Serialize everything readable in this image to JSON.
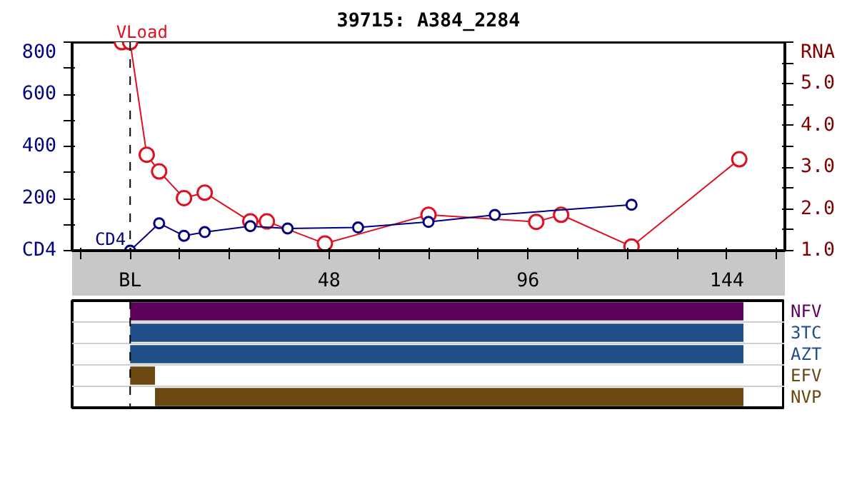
{
  "chart_data": [
    {
      "type": "line",
      "title": "39715: A384_2284",
      "marker": "circle",
      "grid": false,
      "xlim": [
        -14,
        158
      ],
      "xticks": [
        {
          "value": -12,
          "label": null
        },
        {
          "value": 0,
          "label": "BL"
        },
        {
          "value": 12,
          "label": null
        },
        {
          "value": 24,
          "label": null
        },
        {
          "value": 36,
          "label": null
        },
        48,
        {
          "value": 60,
          "label": null
        },
        {
          "value": 72,
          "label": null
        },
        {
          "value": 84,
          "label": null
        },
        96,
        {
          "value": 108,
          "label": null
        },
        {
          "value": 120,
          "label": null
        },
        {
          "value": 132,
          "label": null
        },
        144,
        {
          "value": 156,
          "label": null
        }
      ],
      "ylim": [
        0,
        800
      ],
      "yticks": [
        {
          "value": 0,
          "label": "CD4"
        },
        {
          "value": 100,
          "label": null
        },
        200,
        {
          "value": 300,
          "label": null
        },
        400,
        {
          "value": 500,
          "label": null
        },
        600,
        {
          "value": 700,
          "label": null
        },
        800
      ],
      "y2lim": [
        1,
        6
      ],
      "y2ticks": [
        {
          "value": 1,
          "label": "1.0"
        },
        {
          "value": 1.5,
          "label": null
        },
        {
          "value": 2,
          "label": "2.0"
        },
        {
          "value": 2.5,
          "label": null
        },
        {
          "value": 3,
          "label": "3.0"
        },
        {
          "value": 3.5,
          "label": null
        },
        {
          "value": 4,
          "label": "4.0"
        },
        {
          "value": 4.5,
          "label": null
        },
        {
          "value": 5,
          "label": "5.0"
        },
        {
          "value": 5.5,
          "label": null
        },
        {
          "value": 6,
          "label": "RNA"
        }
      ],
      "ref_lines": [
        {
          "axis": "x",
          "value": 0,
          "line_style": "dashed",
          "color": "#000000"
        }
      ],
      "series": [
        {
          "name": "CD4",
          "color": "#000080",
          "x": [
            0,
            7,
            13,
            18,
            29,
            38,
            55,
            72,
            88,
            121
          ],
          "values": [
            0,
            105,
            57,
            71,
            94,
            85,
            89,
            110,
            137,
            176
          ]
        },
        {
          "name": "VLoad",
          "color": "#dd1122",
          "axis": "y2",
          "x": [
            -2,
            0,
            4,
            7,
            13,
            18,
            29,
            33,
            47,
            72,
            98,
            104,
            121,
            147
          ],
          "values": [
            6.0,
            6.0,
            3.3,
            2.9,
            2.26,
            2.39,
            1.7,
            1.7,
            1.17,
            1.86,
            1.69,
            1.86,
            1.1,
            3.19
          ]
        }
      ]
    },
    {
      "type": "bar",
      "orientation": "horizontal",
      "tick_labels": "y",
      "grid": false,
      "xlim": [
        -14,
        158
      ],
      "categories": [
        "NFV",
        "3TC",
        "AZT",
        "EFV",
        "NVP"
      ],
      "values": [
        148,
        148,
        148,
        6,
        142
      ],
      "base": [
        0,
        0,
        0,
        0,
        6
      ],
      "colors": [
        "#5c005c",
        "#1f4e89",
        "#1f4e89",
        "#6b4712",
        "#6b4712"
      ],
      "ref_lines": [
        {
          "axis": "x",
          "value": 0,
          "line_style": "dashed",
          "color": "#000000"
        }
      ]
    }
  ]
}
